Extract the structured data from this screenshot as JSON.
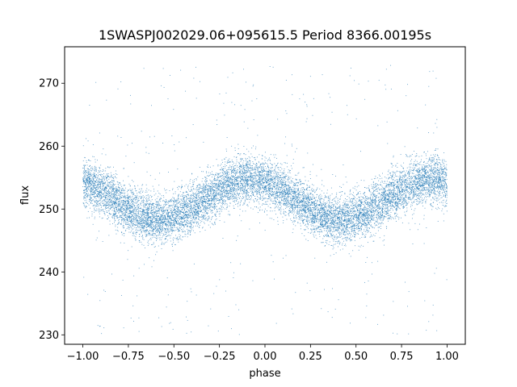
{
  "chart_data": {
    "type": "scatter",
    "title": "1SWASPJ002029.06+095615.5 Period 8366.00195s",
    "xlabel": "phase",
    "ylabel": "flux",
    "xlim": [
      -1.1,
      1.1
    ],
    "ylim": [
      228.5,
      275.8
    ],
    "xticks": [
      -1.0,
      -0.75,
      -0.5,
      -0.25,
      0.0,
      0.25,
      0.5,
      0.75,
      1.0
    ],
    "xtick_labels": [
      "−1.00",
      "−0.75",
      "−0.50",
      "−0.25",
      "0.00",
      "0.25",
      "0.50",
      "0.75",
      "1.00"
    ],
    "yticks": [
      230,
      240,
      250,
      260,
      270
    ],
    "ytick_labels": [
      "230",
      "240",
      "250",
      "260",
      "270"
    ],
    "grid": false,
    "marker_color": "#1f77b4",
    "series": [
      {
        "model": "sinusoid",
        "phase_range": [
          -1.0,
          1.0
        ],
        "mean_flux": 251.5,
        "amplitude": 3.2,
        "peak_phases": [
          -0.98,
          -0.08,
          0.92
        ],
        "trough_phases": [
          -0.58,
          0.42
        ],
        "scatter_sigma": 1.9,
        "n_points": 12000,
        "outlier_fraction": 0.03,
        "outlier_range": [
          230,
          273
        ]
      }
    ]
  }
}
